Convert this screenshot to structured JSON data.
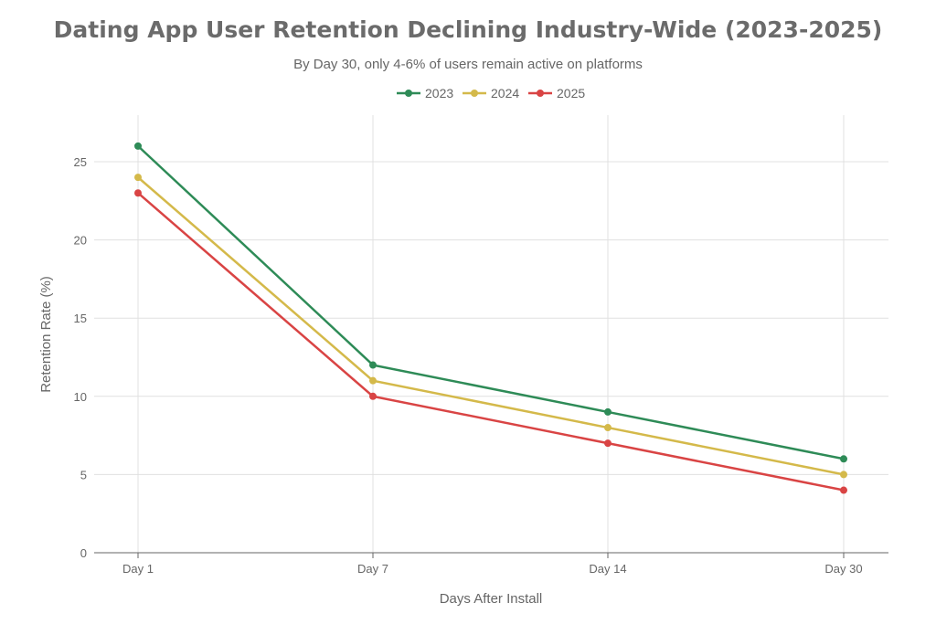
{
  "chart_data": {
    "type": "line",
    "title": "Dating App User Retention Declining Industry-Wide (2023-2025)",
    "subtitle": "By Day 30, only 4-6% of users remain active on platforms",
    "xlabel": "Days After Install",
    "ylabel": "Retention Rate (%)",
    "categories": [
      "Day 1",
      "Day 7",
      "Day 14",
      "Day 30"
    ],
    "ylim": [
      0,
      27.5
    ],
    "yticks": [
      0,
      5,
      10,
      15,
      20,
      25
    ],
    "grid": true,
    "legend": "top-center",
    "series": [
      {
        "name": "2023",
        "color": "#2e8b57",
        "values": [
          26,
          12,
          9,
          6
        ]
      },
      {
        "name": "2024",
        "color": "#d4b94a",
        "values": [
          24,
          11,
          8,
          5
        ]
      },
      {
        "name": "2025",
        "color": "#d94444",
        "values": [
          23,
          10,
          7,
          4
        ]
      }
    ]
  }
}
